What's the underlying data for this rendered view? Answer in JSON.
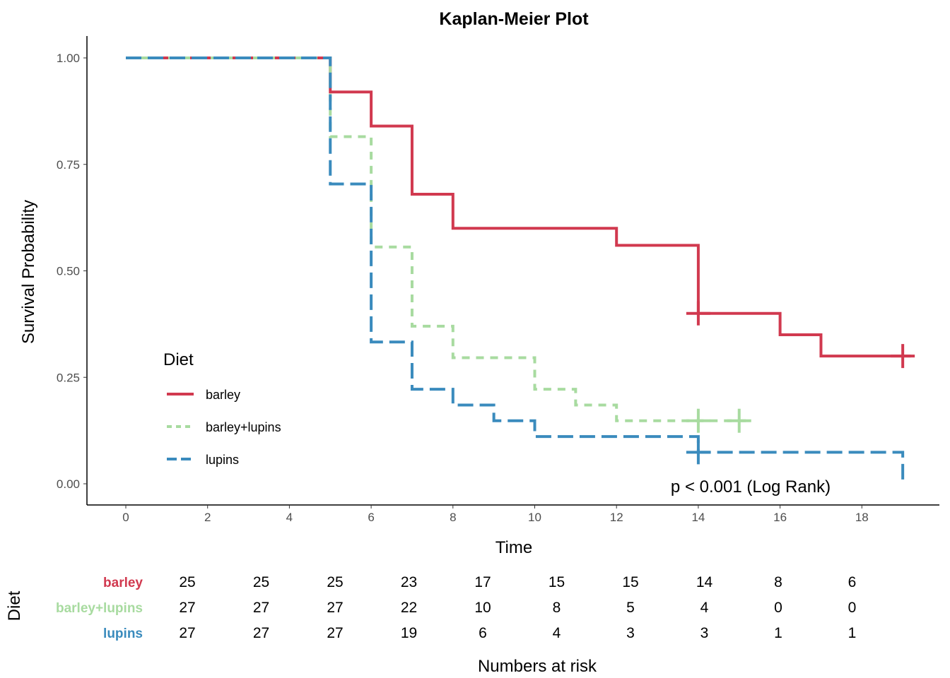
{
  "chart_data": {
    "type": "line",
    "subtype": "step",
    "title": "Kaplan-Meier Plot",
    "xlabel": "Time",
    "ylabel": "Survival Probability",
    "xlim": [
      0,
      19
    ],
    "ylim": [
      0,
      1
    ],
    "x_ticks": [
      0,
      2,
      4,
      6,
      8,
      10,
      12,
      14,
      16,
      18
    ],
    "y_ticks": [
      0,
      0.25,
      0.5,
      0.75,
      1.0
    ],
    "y_tick_labels": [
      "0.00",
      "0.25",
      "0.50",
      "0.75",
      "1.00"
    ],
    "grid": false,
    "legend": {
      "title": "Diet",
      "position": "inside-left"
    },
    "annotation": "p < 0.001 (Log Rank)",
    "series": [
      {
        "name": "barley",
        "color": "#d1394f",
        "dash": "solid",
        "steps": [
          [
            0,
            1.0
          ],
          [
            5,
            0.92
          ],
          [
            6,
            0.84
          ],
          [
            7,
            0.68
          ],
          [
            8,
            0.6
          ],
          [
            12,
            0.56
          ],
          [
            14,
            0.4
          ],
          [
            16,
            0.35
          ],
          [
            17,
            0.3
          ]
        ],
        "end_time": 19.2,
        "censored": [
          [
            14,
            0.4
          ],
          [
            19,
            0.3
          ]
        ]
      },
      {
        "name": "barley+lupins",
        "color": "#a8dba0",
        "dash": "dashed",
        "steps": [
          [
            0,
            1.0
          ],
          [
            5,
            0.815
          ],
          [
            6,
            0.556
          ],
          [
            7,
            0.37
          ],
          [
            8,
            0.296
          ],
          [
            10,
            0.222
          ],
          [
            11,
            0.185
          ],
          [
            12,
            0.148
          ]
        ],
        "end_time": 15.3,
        "censored": [
          [
            14,
            0.148
          ],
          [
            15,
            0.148
          ]
        ]
      },
      {
        "name": "lupins",
        "color": "#3a8bbd",
        "dash": "longdash",
        "steps": [
          [
            0,
            1.0
          ],
          [
            5,
            0.704
          ],
          [
            6,
            0.333
          ],
          [
            7,
            0.222
          ],
          [
            8,
            0.185
          ],
          [
            9,
            0.148
          ],
          [
            10,
            0.111
          ],
          [
            14,
            0.074
          ],
          [
            19,
            0.0
          ]
        ],
        "end_time": 19,
        "censored": [
          [
            14,
            0.074
          ]
        ]
      }
    ],
    "risk_table": {
      "title": "Numbers at risk",
      "ylabel": "Diet",
      "times": [
        0,
        2,
        4,
        6,
        8,
        10,
        12,
        14,
        16,
        18
      ],
      "rows": [
        {
          "name": "barley",
          "color": "#d1394f",
          "values": [
            25,
            25,
            25,
            23,
            17,
            15,
            15,
            14,
            8,
            6
          ]
        },
        {
          "name": "barley+lupins",
          "color": "#a8dba0",
          "values": [
            27,
            27,
            27,
            22,
            10,
            8,
            5,
            4,
            0,
            0
          ]
        },
        {
          "name": "lupins",
          "color": "#3a8bbd",
          "values": [
            27,
            27,
            27,
            19,
            6,
            4,
            3,
            3,
            1,
            1
          ]
        }
      ]
    }
  }
}
